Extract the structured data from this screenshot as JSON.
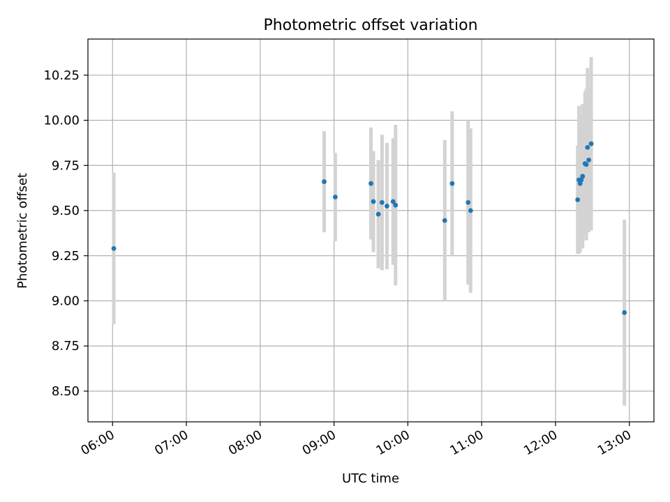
{
  "chart_data": {
    "type": "scatter",
    "title": "Photometric offset variation",
    "xlabel": "UTC time",
    "ylabel": "Photometric offset",
    "x_axis_kind": "time-of-day",
    "xlim": [
      "05:40",
      "13:20"
    ],
    "ylim": [
      8.33,
      10.45
    ],
    "xticks": [
      "06:00",
      "07:00",
      "08:00",
      "09:00",
      "10:00",
      "11:00",
      "12:00",
      "13:00"
    ],
    "yticks": [
      8.5,
      8.75,
      9.0,
      9.25,
      9.5,
      9.75,
      10.0,
      10.25
    ],
    "ytick_labels": [
      "8.50",
      "8.75",
      "9.00",
      "9.25",
      "9.50",
      "9.75",
      "10.00",
      "10.25"
    ],
    "grid": true,
    "legend": "none",
    "x_tick_rotation_deg": 30,
    "colors": {
      "point": "#1f77b4",
      "errorbar": "#d3d3d3",
      "grid": "#b0b0b0",
      "axes": "#000000"
    },
    "points": [
      {
        "x": "06:01",
        "y": 9.29,
        "err": 0.42
      },
      {
        "x": "08:52",
        "y": 9.66,
        "err": 0.28
      },
      {
        "x": "09:01",
        "y": 9.575,
        "err": 0.245
      },
      {
        "x": "09:30",
        "y": 9.65,
        "err": 0.31
      },
      {
        "x": "09:32",
        "y": 9.55,
        "err": 0.28
      },
      {
        "x": "09:36",
        "y": 9.48,
        "err": 0.3
      },
      {
        "x": "09:39",
        "y": 9.545,
        "err": 0.375
      },
      {
        "x": "09:43",
        "y": 9.525,
        "err": 0.35
      },
      {
        "x": "09:48",
        "y": 9.55,
        "err": 0.35
      },
      {
        "x": "09:50",
        "y": 9.53,
        "err": 0.445
      },
      {
        "x": "10:30",
        "y": 9.445,
        "err": 0.445
      },
      {
        "x": "10:36",
        "y": 9.65,
        "err": 0.4
      },
      {
        "x": "10:49",
        "y": 9.545,
        "err": 0.455
      },
      {
        "x": "10:51",
        "y": 9.5,
        "err": 0.455
      },
      {
        "x": "12:18",
        "y": 9.56,
        "err": 0.3
      },
      {
        "x": "12:19",
        "y": 9.67,
        "err": 0.41
      },
      {
        "x": "12:20",
        "y": 9.65,
        "err": 0.38
      },
      {
        "x": "12:21",
        "y": 9.67,
        "err": 0.35
      },
      {
        "x": "12:22",
        "y": 9.69,
        "err": 0.4
      },
      {
        "x": "12:24",
        "y": 9.76,
        "err": 0.4
      },
      {
        "x": "12:25",
        "y": 9.755,
        "err": 0.42
      },
      {
        "x": "12:26",
        "y": 9.85,
        "err": 0.44
      },
      {
        "x": "12:27",
        "y": 9.78,
        "err": 0.4
      },
      {
        "x": "12:29",
        "y": 9.87,
        "err": 0.48
      },
      {
        "x": "12:56",
        "y": 8.935,
        "err": 0.515
      }
    ]
  }
}
